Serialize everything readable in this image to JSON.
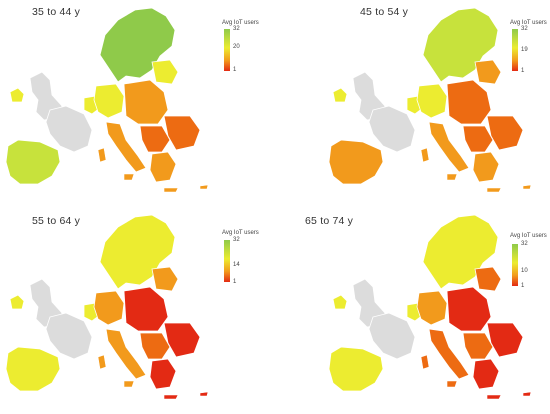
{
  "legend_title": "Avg IoT users",
  "colors": {
    "green": "#8fca4a",
    "yellow_green": "#c7e23c",
    "yellow": "#ecec30",
    "orange": "#f29a1c",
    "dark_orange": "#ed6b12",
    "red": "#e32a14",
    "none": "#dcdcdc"
  },
  "panels": [
    {
      "title": "35 to 44 y",
      "scale": {
        "max": "32",
        "mid": "20",
        "min": "1"
      },
      "regions": {
        "nordic": "green",
        "iberia": "yellow_green",
        "uk": "none",
        "ireland": "yellow",
        "france": "none",
        "benelux": "yellow",
        "germany": "yellow",
        "central": "orange",
        "italy": "orange",
        "balkans": "dark_orange",
        "baltic": "yellow",
        "southeast": "dark_orange",
        "greece": "orange"
      }
    },
    {
      "title": "45 to 54 y",
      "scale": {
        "max": "32",
        "mid": "19",
        "min": "1"
      },
      "regions": {
        "nordic": "yellow_green",
        "iberia": "orange",
        "uk": "none",
        "ireland": "yellow",
        "france": "none",
        "benelux": "yellow",
        "germany": "yellow",
        "central": "dark_orange",
        "italy": "orange",
        "balkans": "dark_orange",
        "baltic": "orange",
        "southeast": "dark_orange",
        "greece": "orange"
      }
    },
    {
      "title": "55 to 64 y",
      "scale": {
        "max": "32",
        "mid": "14",
        "min": "1"
      },
      "regions": {
        "nordic": "yellow",
        "iberia": "yellow",
        "uk": "none",
        "ireland": "yellow",
        "france": "none",
        "benelux": "yellow",
        "germany": "orange",
        "central": "red",
        "italy": "orange",
        "balkans": "dark_orange",
        "baltic": "orange",
        "southeast": "red",
        "greece": "red"
      }
    },
    {
      "title": "65 to 74 y",
      "scale": {
        "max": "32",
        "mid": "10",
        "min": "1"
      },
      "regions": {
        "nordic": "yellow",
        "iberia": "yellow",
        "uk": "none",
        "ireland": "yellow",
        "france": "none",
        "benelux": "yellow",
        "germany": "orange",
        "central": "red",
        "italy": "dark_orange",
        "balkans": "dark_orange",
        "baltic": "dark_orange",
        "southeast": "red",
        "greece": "red"
      }
    }
  ]
}
